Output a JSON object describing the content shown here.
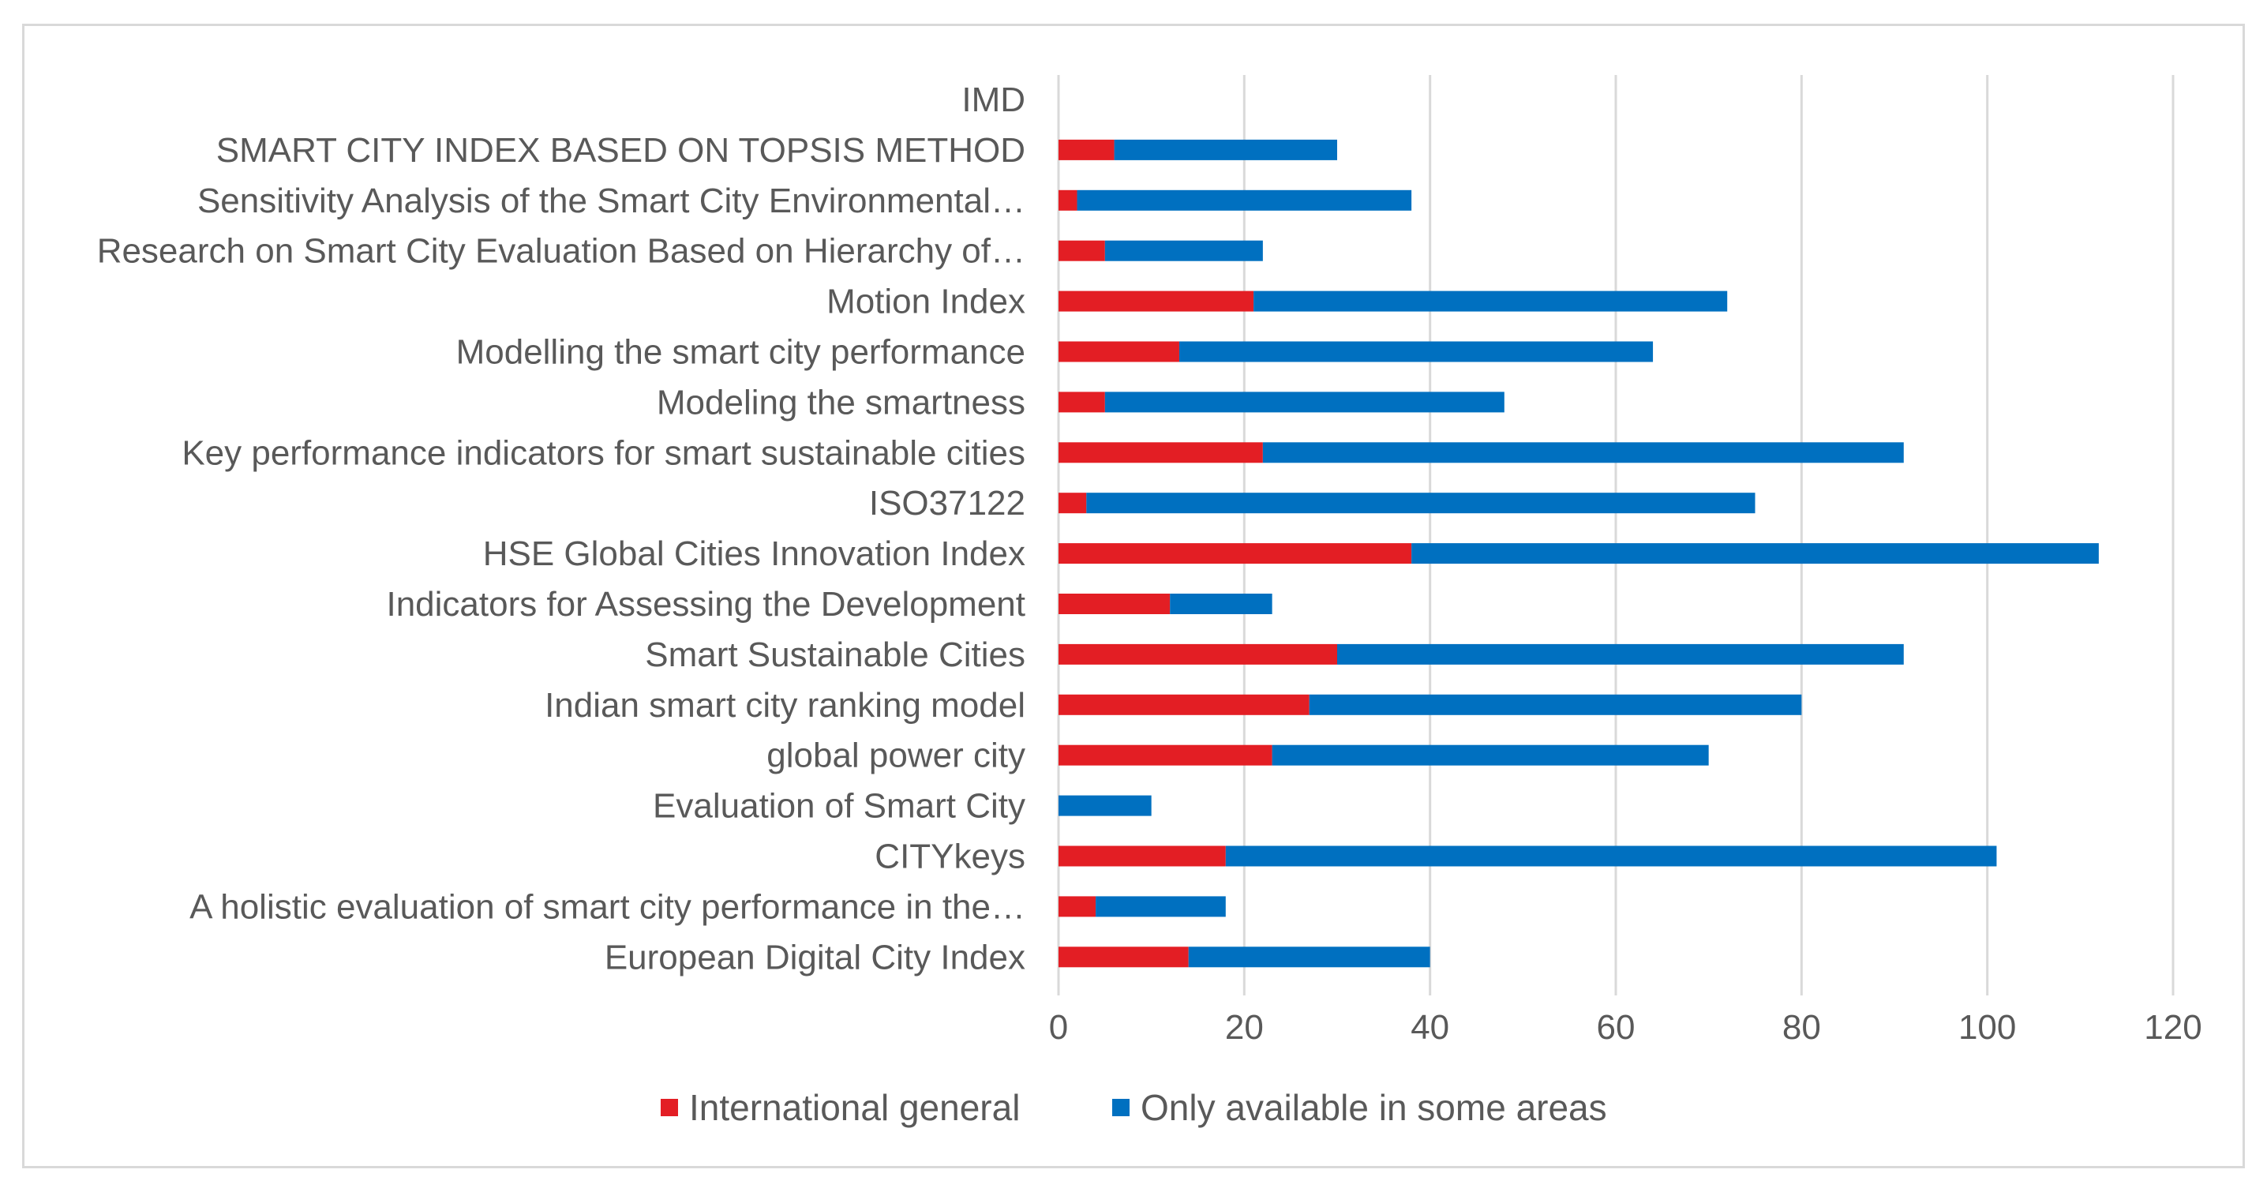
{
  "chart_data": {
    "type": "bar",
    "orientation": "horizontal",
    "stacked": true,
    "title": "",
    "xlabel": "",
    "ylabel": "",
    "xlim": [
      0,
      120
    ],
    "xticks": [
      0,
      20,
      40,
      60,
      80,
      100,
      120
    ],
    "grid": true,
    "legend_position": "bottom",
    "categories": [
      "IMD",
      "SMART CITY INDEX BASED ON TOPSIS METHOD",
      "Sensitivity Analysis of the Smart City Environmental…",
      "Research on Smart City Evaluation Based on Hierarchy of…",
      "Motion Index",
      "Modelling the smart city performance",
      "Modeling the smartness",
      "Key performance indicators for smart sustainable cities",
      "ISO37122",
      "HSE Global Cities Innovation Index",
      "Indicators for Assessing the Development",
      "Smart Sustainable Cities",
      "Indian smart city ranking model",
      "global power city",
      "Evaluation of Smart City",
      "CITYkeys",
      "A holistic evaluation of smart city performance in the…",
      "European Digital City Index"
    ],
    "series": [
      {
        "name": "International general",
        "color": "#e31e24",
        "values": [
          0,
          6,
          2,
          5,
          21,
          13,
          5,
          22,
          3,
          38,
          12,
          30,
          27,
          23,
          0,
          18,
          4,
          14
        ]
      },
      {
        "name": "Only available in some areas",
        "color": "#0070c0",
        "values": [
          0,
          24,
          36,
          17,
          51,
          51,
          43,
          69,
          72,
          74,
          11,
          61,
          53,
          47,
          10,
          83,
          14,
          26
        ]
      }
    ]
  }
}
